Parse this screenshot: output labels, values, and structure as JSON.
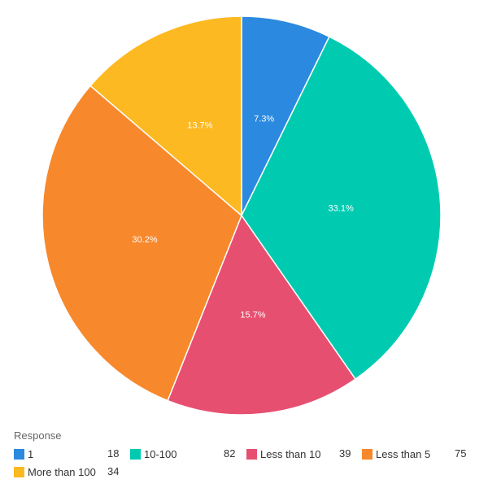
{
  "legend": {
    "title": "Response",
    "items": [
      {
        "label": "1",
        "count": "18",
        "color": "#2b89e0"
      },
      {
        "label": "10-100",
        "count": "82",
        "color": "#00cbb1"
      },
      {
        "label": "Less than 10",
        "count": "39",
        "color": "#e74f70"
      },
      {
        "label": "Less than 5",
        "count": "75",
        "color": "#f7882c"
      },
      {
        "label": "More than 100",
        "count": "34",
        "color": "#fdb921"
      }
    ]
  },
  "chart_data": {
    "type": "pie",
    "title": "",
    "legend_title": "Response",
    "categories": [
      "1",
      "10-100",
      "Less than 10",
      "Less than 5",
      "More than 100"
    ],
    "values": [
      18,
      82,
      39,
      75,
      34
    ],
    "percentages": [
      "7.3%",
      "33.1%",
      "15.7%",
      "30.2%",
      "13.7%"
    ],
    "colors": [
      "#2b89e0",
      "#00cbb1",
      "#e74f70",
      "#f7882c",
      "#fdb921"
    ],
    "legend_position": "bottom"
  }
}
